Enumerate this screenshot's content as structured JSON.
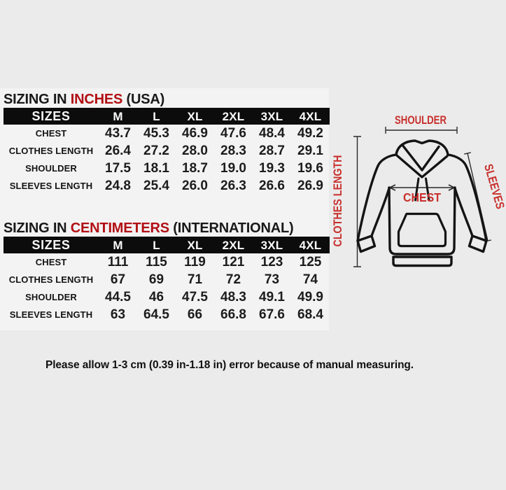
{
  "colors": {
    "page_background": "#ebebeb",
    "table_panel_background": "#f3f3f3",
    "header_bar": "#0c0c0c",
    "title_red": "#b20f14",
    "diagram_red": "#c8302d",
    "text_black": "#191919"
  },
  "tables": [
    {
      "title_prefix": "SIZING IN",
      "title_highlight": "INCHES",
      "title_suffix": "(USA)",
      "columns": [
        "SIZES",
        "M",
        "L",
        "XL",
        "2XL",
        "3XL",
        "4XL"
      ],
      "rows": [
        {
          "label": "CHEST",
          "values": [
            "43.7",
            "45.3",
            "46.9",
            "47.6",
            "48.4",
            "49.2"
          ]
        },
        {
          "label": "CLOTHES LENGTH",
          "values": [
            "26.4",
            "27.2",
            "28.0",
            "28.3",
            "28.7",
            "29.1"
          ]
        },
        {
          "label": "SHOULDER",
          "values": [
            "17.5",
            "18.1",
            "18.7",
            "19.0",
            "19.3",
            "19.6"
          ]
        },
        {
          "label": "SLEEVES LENGTH",
          "values": [
            "24.8",
            "25.4",
            "26.0",
            "26.3",
            "26.6",
            "26.9"
          ]
        }
      ]
    },
    {
      "title_prefix": "SIZING IN",
      "title_highlight": "CENTIMETERS",
      "title_suffix": "(INTERNATIONAL)",
      "columns": [
        "SIZES",
        "M",
        "L",
        "XL",
        "2XL",
        "3XL",
        "4XL"
      ],
      "rows": [
        {
          "label": "CHEST",
          "values": [
            "111",
            "115",
            "119",
            "121",
            "123",
            "125"
          ]
        },
        {
          "label": "CLOTHES LENGTH",
          "values": [
            "67",
            "69",
            "71",
            "72",
            "73",
            "74"
          ]
        },
        {
          "label": "SHOULDER",
          "values": [
            "44.5",
            "46",
            "47.5",
            "48.3",
            "49.1",
            "49.9"
          ]
        },
        {
          "label": "SLEEVES LENGTH",
          "values": [
            "63",
            "64.5",
            "66",
            "66.8",
            "67.6",
            "68.4"
          ]
        }
      ]
    }
  ],
  "diagram": {
    "labels": {
      "shoulder": "SHOULDER",
      "clothes_length": "CLOTHES LENGTH",
      "chest": "CHEST",
      "sleeves": "SLEEVES"
    }
  },
  "note": "Please allow 1-3 cm (0.39 in-1.18 in) error because of manual measuring."
}
